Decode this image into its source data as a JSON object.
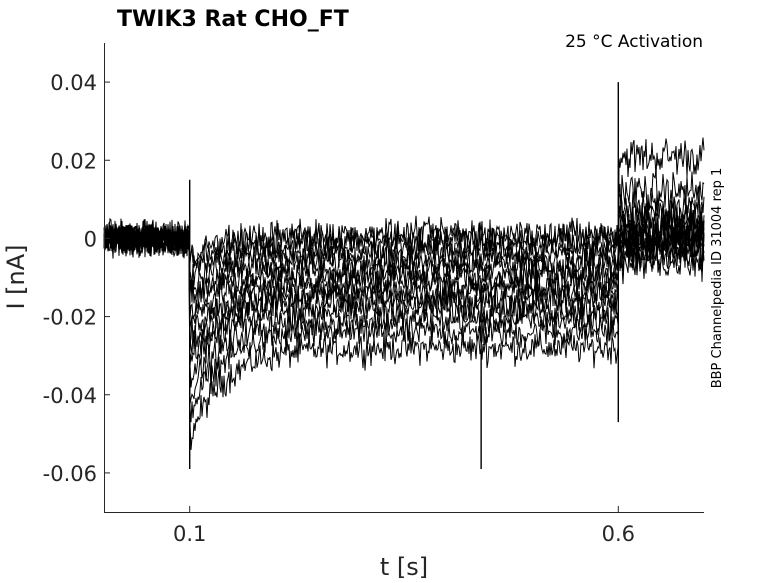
{
  "chart_data": {
    "type": "line",
    "title": "TWIK3  Rat  CHO_FT",
    "annotation": "25 °C  Activation",
    "side_note": "BBP Channelpedia ID 31004 rep 1",
    "xlabel": "t [s]",
    "ylabel": "I [nA]",
    "xlim": [
      0.0,
      0.7
    ],
    "ylim": [
      -0.07,
      0.05
    ],
    "xticks": [
      0.1,
      0.6
    ],
    "xtick_labels": [
      "0.1",
      "0.6"
    ],
    "yticks": [
      0.04,
      0.02,
      0,
      -0.02,
      -0.04,
      -0.06
    ],
    "ytick_labels": [
      "0.04",
      "0.02",
      "0",
      "-0.02",
      "-0.04",
      "-0.06"
    ],
    "grid": false,
    "line_color": "#000000",
    "series_levels": [
      {
        "pulse_level": -0.028,
        "step_level": 0.021
      },
      {
        "pulse_level": -0.024,
        "step_level": 0.012
      },
      {
        "pulse_level": -0.021,
        "step_level": 0.008
      },
      {
        "pulse_level": -0.018,
        "step_level": 0.006
      },
      {
        "pulse_level": -0.016,
        "step_level": 0.004
      },
      {
        "pulse_level": -0.014,
        "step_level": 0.003
      },
      {
        "pulse_level": -0.012,
        "step_level": 0.002
      },
      {
        "pulse_level": -0.01,
        "step_level": 0.001
      },
      {
        "pulse_level": -0.008,
        "step_level": 0.0
      },
      {
        "pulse_level": -0.006,
        "step_level": -0.001
      },
      {
        "pulse_level": -0.004,
        "step_level": -0.002
      },
      {
        "pulse_level": -0.002,
        "step_level": -0.003
      },
      {
        "pulse_level": 0.0,
        "step_level": -0.004
      },
      {
        "pulse_level": 0.001,
        "step_level": -0.006
      }
    ],
    "events": {
      "pulse_on_t": 0.1,
      "pulse_off_t": 0.6,
      "baseline": 0.0,
      "pulse_on_spike_min": -0.059,
      "pulse_on_spike_max": 0.015,
      "mid_spike_t": 0.44,
      "mid_spike_min": -0.059,
      "pulse_off_spike_max": 0.04,
      "pulse_off_spike_min": -0.047
    }
  }
}
